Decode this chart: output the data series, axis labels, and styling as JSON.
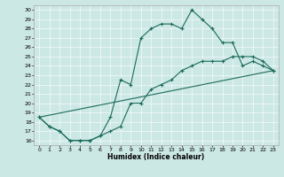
{
  "title": "",
  "xlabel": "Humidex (Indice chaleur)",
  "ylabel": "",
  "bg_color": "#cce8e4",
  "line_color": "#1a6b5a",
  "xlim": [
    -0.5,
    23.5
  ],
  "ylim": [
    15.5,
    30.5
  ],
  "xticks": [
    0,
    1,
    2,
    3,
    4,
    5,
    6,
    7,
    8,
    9,
    10,
    11,
    12,
    13,
    14,
    15,
    16,
    17,
    18,
    19,
    20,
    21,
    22,
    23
  ],
  "yticks": [
    16,
    17,
    18,
    19,
    20,
    21,
    22,
    23,
    24,
    25,
    26,
    27,
    28,
    29,
    30
  ],
  "curve1_x": [
    0,
    1,
    2,
    3,
    4,
    5,
    6,
    7,
    8,
    9,
    10,
    11,
    12,
    13,
    14,
    15,
    16,
    17,
    18,
    19,
    20,
    21,
    22,
    23
  ],
  "curve1_y": [
    18.5,
    17.5,
    17.0,
    16.0,
    16.0,
    16.0,
    16.5,
    17.0,
    17.5,
    20.0,
    20.0,
    21.5,
    22.0,
    22.5,
    23.5,
    24.0,
    24.5,
    24.5,
    24.5,
    25.0,
    25.0,
    25.0,
    24.5,
    23.5
  ],
  "curve2_x": [
    0,
    1,
    2,
    3,
    4,
    5,
    6,
    7,
    8,
    9,
    10,
    11,
    12,
    13,
    14,
    15,
    16,
    17,
    18,
    19,
    20,
    21,
    22,
    23
  ],
  "curve2_y": [
    18.5,
    17.5,
    17.0,
    16.0,
    16.0,
    16.0,
    16.5,
    18.5,
    22.5,
    22.0,
    27.0,
    28.0,
    28.5,
    28.5,
    28.0,
    30.0,
    29.0,
    28.0,
    26.5,
    26.5,
    24.0,
    24.5,
    24.0,
    23.5
  ],
  "curve3_x": [
    0,
    23
  ],
  "curve3_y": [
    18.5,
    23.5
  ],
  "grid_color": "#ffffff",
  "spine_color": "#aaaaaa"
}
